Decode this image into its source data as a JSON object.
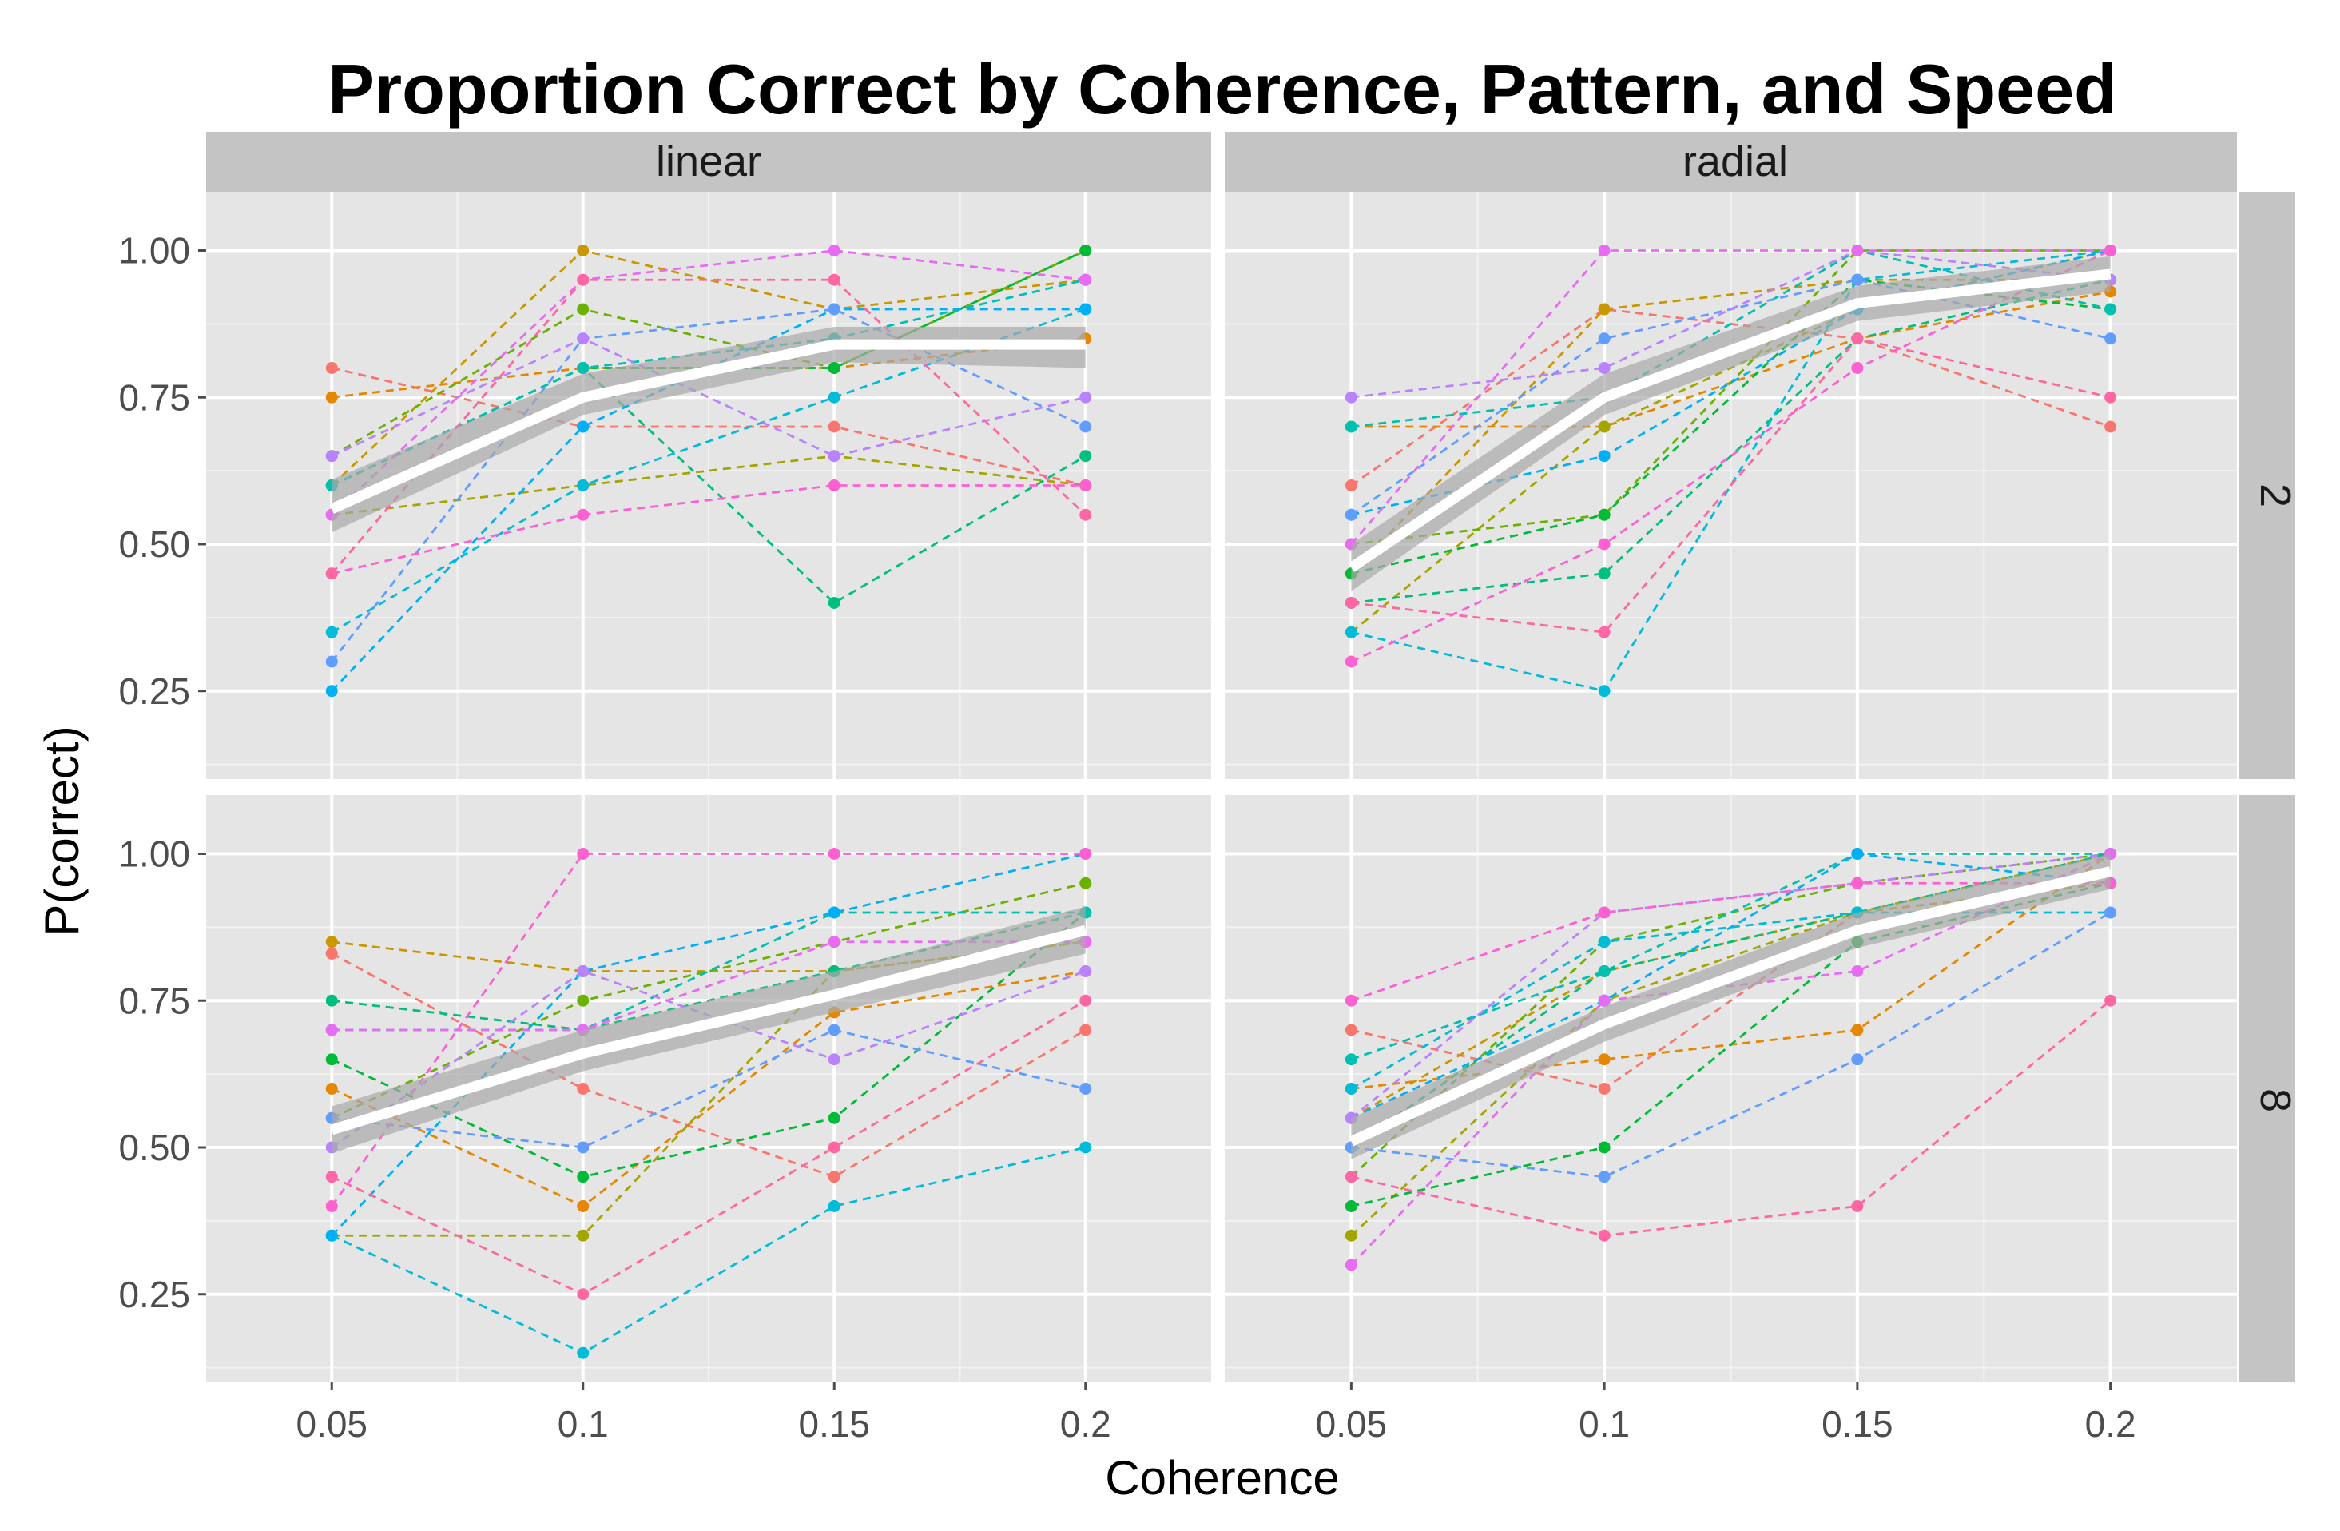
{
  "chart_data": {
    "type": "line",
    "title": "Proportion Correct by Coherence, Pattern, and Speed",
    "xlabel": "Coherence",
    "ylabel": "P(correct)",
    "x": [
      0.05,
      0.1,
      0.15,
      0.2
    ],
    "x_tick_labels": [
      "0.05",
      "0.1",
      "0.15",
      "0.2"
    ],
    "y_ticks": [
      0.25,
      0.5,
      0.75,
      1.0
    ],
    "y_tick_labels": [
      "0.25",
      "0.50",
      "0.75",
      "1.00"
    ],
    "ylim": [
      0.1,
      1.1
    ],
    "xlim": [
      0.025,
      0.225
    ],
    "grid": true,
    "column_facets": [
      "linear",
      "radial"
    ],
    "row_facets": [
      "2",
      "8"
    ],
    "colors": {
      "panel_background": "#e5e5e5",
      "gridline": "#ffffff",
      "strip_background": "#c4c4c4",
      "mean_line": "#ffffff",
      "ribbon": "#aaaaaa",
      "subject_palette": [
        "#f8766d",
        "#e58700",
        "#c99800",
        "#a3a500",
        "#6bb100",
        "#00ba38",
        "#00bf7d",
        "#00c0af",
        "#00bcd8",
        "#00b0f6",
        "#619cff",
        "#b983ff",
        "#e76bf3",
        "#fd61d1",
        "#ff67a4"
      ]
    },
    "panels": [
      {
        "pattern": "linear",
        "speed": "2",
        "mean": [
          0.56,
          0.75,
          0.84,
          0.84
        ],
        "ribbon_low": [
          0.52,
          0.72,
          0.81,
          0.8
        ],
        "ribbon_high": [
          0.61,
          0.79,
          0.87,
          0.87
        ],
        "subjects": [
          [
            0.8,
            0.7,
            0.7,
            0.6
          ],
          [
            0.75,
            0.8,
            0.8,
            0.85
          ],
          [
            0.6,
            1.0,
            0.9,
            0.95
          ],
          [
            0.55,
            0.6,
            0.65,
            0.6
          ],
          [
            0.65,
            0.9,
            0.8,
            1.0
          ],
          [
            0.6,
            0.8,
            0.8,
            1.0
          ],
          [
            0.6,
            0.8,
            0.4,
            0.65
          ],
          [
            0.6,
            0.8,
            0.85,
            0.95
          ],
          [
            0.35,
            0.6,
            0.75,
            0.9
          ],
          [
            0.25,
            0.7,
            0.9,
            0.9
          ],
          [
            0.3,
            0.85,
            0.9,
            0.7
          ],
          [
            0.65,
            0.85,
            0.65,
            0.75
          ],
          [
            0.55,
            0.95,
            1.0,
            0.95
          ],
          [
            0.45,
            0.55,
            0.6,
            0.6
          ],
          [
            0.45,
            0.95,
            0.95,
            0.55
          ]
        ]
      },
      {
        "pattern": "radial",
        "speed": "2",
        "mean": [
          0.46,
          0.75,
          0.91,
          0.96
        ],
        "ribbon_low": [
          0.42,
          0.72,
          0.88,
          0.93
        ],
        "ribbon_high": [
          0.5,
          0.79,
          0.94,
          0.99
        ],
        "subjects": [
          [
            0.6,
            0.9,
            0.85,
            0.7
          ],
          [
            0.7,
            0.7,
            0.85,
            0.93
          ],
          [
            0.45,
            0.9,
            0.95,
            0.95
          ],
          [
            0.35,
            0.7,
            0.9,
            1.0
          ],
          [
            0.5,
            0.55,
            1.0,
            1.0
          ],
          [
            0.45,
            0.55,
            0.95,
            0.9
          ],
          [
            0.4,
            0.45,
            0.85,
            0.95
          ],
          [
            0.7,
            0.75,
            1.0,
            0.9
          ],
          [
            0.35,
            0.25,
            0.95,
            1.0
          ],
          [
            0.55,
            0.65,
            0.9,
            1.0
          ],
          [
            0.55,
            0.85,
            0.95,
            0.85
          ],
          [
            0.75,
            0.8,
            1.0,
            0.95
          ],
          [
            0.5,
            1.0,
            1.0,
            1.0
          ],
          [
            0.3,
            0.5,
            0.8,
            1.0
          ],
          [
            0.4,
            0.35,
            0.85,
            0.75
          ]
        ]
      },
      {
        "pattern": "linear",
        "speed": "8",
        "mean": [
          0.53,
          0.66,
          0.76,
          0.87
        ],
        "ribbon_low": [
          0.49,
          0.63,
          0.73,
          0.83
        ],
        "ribbon_high": [
          0.57,
          0.7,
          0.8,
          0.91
        ],
        "subjects": [
          [
            0.83,
            0.6,
            0.45,
            0.7
          ],
          [
            0.6,
            0.4,
            0.73,
            0.8
          ],
          [
            0.85,
            0.8,
            0.8,
            0.85
          ],
          [
            0.35,
            0.35,
            0.8,
            0.85
          ],
          [
            0.55,
            0.75,
            0.85,
            0.95
          ],
          [
            0.65,
            0.45,
            0.55,
            0.9
          ],
          [
            0.75,
            0.7,
            0.8,
            0.9
          ],
          [
            0.7,
            0.7,
            0.9,
            0.9
          ],
          [
            0.35,
            0.15,
            0.4,
            0.5
          ],
          [
            0.35,
            0.8,
            0.9,
            1.0
          ],
          [
            0.55,
            0.5,
            0.7,
            0.6
          ],
          [
            0.5,
            0.8,
            0.65,
            0.8
          ],
          [
            0.7,
            0.7,
            0.85,
            0.85
          ],
          [
            0.4,
            1.0,
            1.0,
            1.0
          ],
          [
            0.45,
            0.25,
            0.5,
            0.75
          ]
        ]
      },
      {
        "pattern": "radial",
        "speed": "8",
        "mean": [
          0.51,
          0.71,
          0.87,
          0.97
        ],
        "ribbon_low": [
          0.48,
          0.68,
          0.84,
          0.94
        ],
        "ribbon_high": [
          0.55,
          0.74,
          0.9,
          1.0
        ],
        "subjects": [
          [
            0.7,
            0.6,
            0.9,
            1.0
          ],
          [
            0.6,
            0.65,
            0.7,
            1.0
          ],
          [
            0.55,
            0.8,
            0.9,
            0.95
          ],
          [
            0.35,
            0.75,
            0.9,
            1.0
          ],
          [
            0.45,
            0.85,
            0.95,
            1.0
          ],
          [
            0.4,
            0.5,
            0.85,
            0.95
          ],
          [
            0.5,
            0.8,
            0.9,
            1.0
          ],
          [
            0.65,
            0.8,
            1.0,
            1.0
          ],
          [
            0.6,
            0.85,
            0.9,
            0.9
          ],
          [
            0.55,
            0.75,
            1.0,
            0.95
          ],
          [
            0.5,
            0.45,
            0.65,
            0.9
          ],
          [
            0.55,
            0.9,
            0.95,
            1.0
          ],
          [
            0.3,
            0.75,
            0.8,
            1.0
          ],
          [
            0.75,
            0.9,
            0.95,
            0.95
          ],
          [
            0.45,
            0.35,
            0.4,
            0.75
          ]
        ]
      }
    ]
  }
}
